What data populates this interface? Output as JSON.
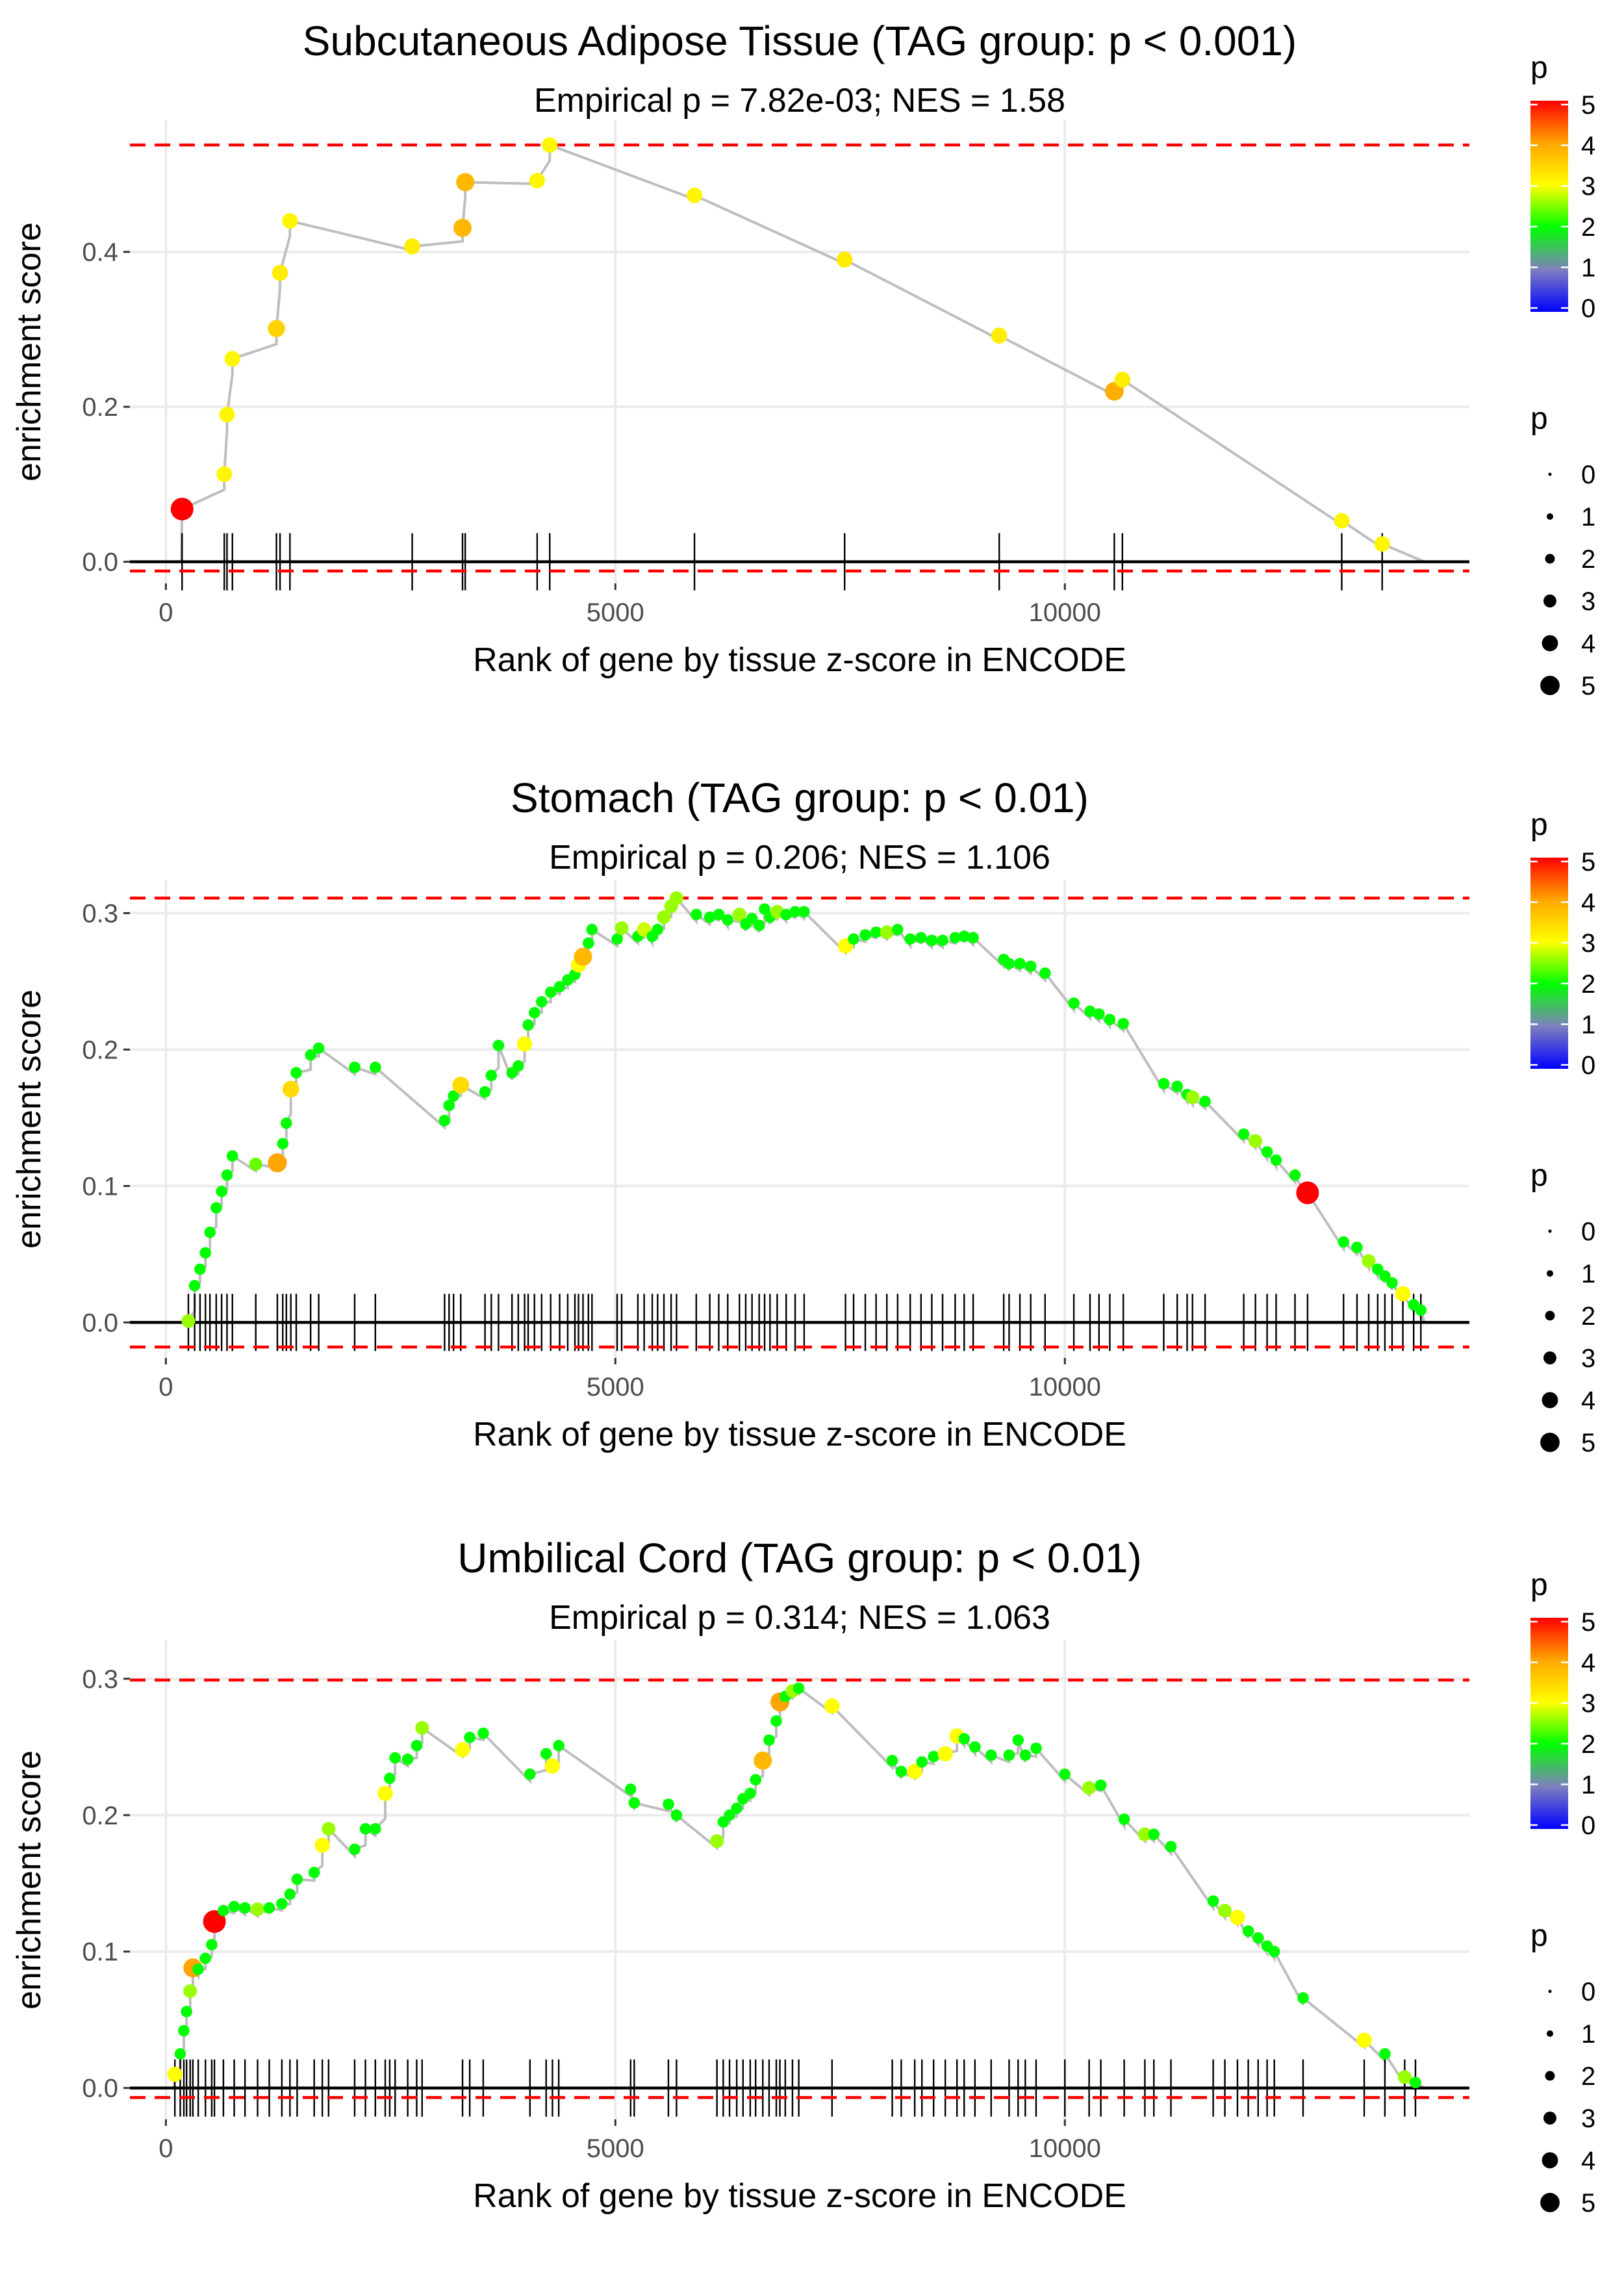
{
  "colorbar": {
    "stops": [
      "#0000ff",
      "#7f7fbf",
      "#00ff00",
      "#ffff00",
      "#ffa500",
      "#ff0000"
    ],
    "ticks": [
      0,
      1,
      2,
      3,
      4,
      5
    ]
  },
  "colors": {
    "threshold": "#ff0000",
    "line": "#bebebe",
    "grid": "#ebebeb",
    "rug": "#000000"
  },
  "chart_data": [
    {
      "type": "scatter",
      "title": "Subcutaneous Adipose Tissue (TAG group: p < 0.001)",
      "subtitle": "Empirical p = 7.82e-03; NES = 1.58",
      "xlabel": "Rank of gene by tissue z-score in ENCODE",
      "ylabel": "enrichment score",
      "xlim": [
        -400,
        14500
      ],
      "ylim": [
        -0.028,
        0.57
      ],
      "xticks": [
        0,
        5000,
        10000
      ],
      "xticklabels": [
        "0",
        "5000",
        "10000"
      ],
      "yticks": [
        0.0,
        0.2,
        0.4
      ],
      "yticklabels": [
        "0.0",
        "0.2",
        "0.4"
      ],
      "hlines": [
        0.538,
        -0.012
      ],
      "legend_color_title": "p",
      "legend_size_title": "p",
      "legend_size_labels": [
        "0",
        "1",
        "2",
        "3",
        "4",
        "5"
      ],
      "hits": [
        [
          180,
          0.068,
          5
        ],
        [
          650,
          0.113,
          3.1
        ],
        [
          680,
          0.19,
          3.1
        ],
        [
          740,
          0.262,
          3.1
        ],
        [
          1230,
          0.301,
          3.5
        ],
        [
          1270,
          0.373,
          3.2
        ],
        [
          1380,
          0.44,
          3.1
        ],
        [
          2740,
          0.407,
          3.2
        ],
        [
          3300,
          0.431,
          3.8
        ],
        [
          3330,
          0.49,
          3.8
        ],
        [
          4130,
          0.492,
          3.1
        ],
        [
          4270,
          0.538,
          3.1
        ],
        [
          5880,
          0.473,
          3.1
        ],
        [
          7550,
          0.39,
          3.2
        ],
        [
          9270,
          0.292,
          3.2
        ],
        [
          10550,
          0.22,
          3.9
        ],
        [
          10640,
          0.235,
          3.2
        ],
        [
          13080,
          0.053,
          3.1
        ],
        [
          13530,
          0.023,
          3.1
        ]
      ],
      "end_rank": 14000
    },
    {
      "type": "scatter",
      "title": "Stomach (TAG group: p < 0.01)",
      "subtitle": "Empirical p = 0.206; NES = 1.106",
      "xlabel": "Rank of gene by tissue z-score in ENCODE",
      "ylabel": "enrichment score",
      "xlim": [
        -400,
        14500
      ],
      "ylim": [
        -0.026,
        0.324
      ],
      "xticks": [
        0,
        5000,
        10000
      ],
      "xticklabels": [
        "0",
        "5000",
        "10000"
      ],
      "yticks": [
        0.0,
        0.1,
        0.2,
        0.3
      ],
      "yticklabels": [
        "0.0",
        "0.1",
        "0.2",
        "0.3"
      ],
      "hlines": [
        0.311,
        -0.018
      ],
      "legend_color_title": "p",
      "legend_size_title": "p",
      "legend_size_labels": [
        "0",
        "1",
        "2",
        "3",
        "4",
        "5"
      ],
      "hits": [
        [
          250,
          0.001,
          2.6
        ],
        [
          320,
          0.027,
          2.0
        ],
        [
          380,
          0.039,
          2.0
        ],
        [
          440,
          0.051,
          2.0
        ],
        [
          490,
          0.066,
          2.0
        ],
        [
          560,
          0.084,
          2.0
        ],
        [
          620,
          0.096,
          2.0
        ],
        [
          680,
          0.108,
          2.0
        ],
        [
          740,
          0.122,
          2.0
        ],
        [
          1000,
          0.116,
          2.4
        ],
        [
          1240,
          0.117,
          4.0
        ],
        [
          1300,
          0.131,
          2.0
        ],
        [
          1340,
          0.146,
          2.0
        ],
        [
          1390,
          0.171,
          3.4
        ],
        [
          1450,
          0.183,
          2.0
        ],
        [
          1610,
          0.196,
          2.0
        ],
        [
          1700,
          0.201,
          2.0
        ],
        [
          2100,
          0.187,
          2.0
        ],
        [
          2330,
          0.187,
          2.0
        ],
        [
          3100,
          0.148,
          2.0
        ],
        [
          3150,
          0.159,
          2.0
        ],
        [
          3200,
          0.166,
          2.0
        ],
        [
          3280,
          0.174,
          3.4
        ],
        [
          3550,
          0.169,
          2.0
        ],
        [
          3620,
          0.181,
          2.0
        ],
        [
          3700,
          0.203,
          2.0
        ],
        [
          3850,
          0.183,
          2.0
        ],
        [
          3920,
          0.188,
          2.0
        ],
        [
          3990,
          0.204,
          3.0
        ],
        [
          4030,
          0.218,
          2.0
        ],
        [
          4100,
          0.227,
          2.0
        ],
        [
          4180,
          0.235,
          2.0
        ],
        [
          4280,
          0.242,
          2.0
        ],
        [
          4380,
          0.246,
          2.0
        ],
        [
          4470,
          0.251,
          2.0
        ],
        [
          4550,
          0.255,
          2.0
        ],
        [
          4590,
          0.262,
          3.0
        ],
        [
          4640,
          0.268,
          3.8
        ],
        [
          4700,
          0.278,
          2.0
        ],
        [
          4740,
          0.288,
          2.0
        ],
        [
          5020,
          0.281,
          2.0
        ],
        [
          5070,
          0.289,
          2.6
        ],
        [
          5250,
          0.283,
          2.0
        ],
        [
          5320,
          0.288,
          2.8
        ],
        [
          5410,
          0.283,
          2.0
        ],
        [
          5470,
          0.288,
          2.0
        ],
        [
          5540,
          0.297,
          2.6
        ],
        [
          5620,
          0.305,
          2.6
        ],
        [
          5680,
          0.311,
          2.6
        ],
        [
          5900,
          0.299,
          2.0
        ],
        [
          6050,
          0.297,
          2.0
        ],
        [
          6150,
          0.299,
          2.0
        ],
        [
          6250,
          0.295,
          2.0
        ],
        [
          6380,
          0.299,
          2.6
        ],
        [
          6450,
          0.292,
          2.0
        ],
        [
          6520,
          0.296,
          2.0
        ],
        [
          6600,
          0.291,
          2.0
        ],
        [
          6660,
          0.303,
          2.0
        ],
        [
          6720,
          0.297,
          2.0
        ],
        [
          6800,
          0.301,
          2.6
        ],
        [
          6900,
          0.299,
          2.0
        ],
        [
          7000,
          0.301,
          2.0
        ],
        [
          7100,
          0.301,
          2.0
        ],
        [
          7560,
          0.276,
          3.0
        ],
        [
          7650,
          0.281,
          2.0
        ],
        [
          7780,
          0.284,
          2.0
        ],
        [
          7900,
          0.286,
          2.0
        ],
        [
          8020,
          0.286,
          2.6
        ],
        [
          8140,
          0.288,
          2.0
        ],
        [
          8280,
          0.281,
          2.0
        ],
        [
          8400,
          0.282,
          2.0
        ],
        [
          8520,
          0.28,
          2.0
        ],
        [
          8640,
          0.28,
          2.0
        ],
        [
          8780,
          0.282,
          2.0
        ],
        [
          8880,
          0.283,
          2.0
        ],
        [
          8980,
          0.282,
          2.0
        ],
        [
          9320,
          0.266,
          2.0
        ],
        [
          9380,
          0.263,
          2.0
        ],
        [
          9500,
          0.263,
          2.0
        ],
        [
          9620,
          0.261,
          2.0
        ],
        [
          9780,
          0.256,
          2.0
        ],
        [
          10100,
          0.234,
          2.0
        ],
        [
          10280,
          0.228,
          2.0
        ],
        [
          10380,
          0.226,
          2.0
        ],
        [
          10500,
          0.222,
          2.0
        ],
        [
          10650,
          0.219,
          2.0
        ],
        [
          11100,
          0.175,
          2.0
        ],
        [
          11250,
          0.173,
          2.0
        ],
        [
          11360,
          0.167,
          2.0
        ],
        [
          11420,
          0.165,
          2.6
        ],
        [
          11560,
          0.162,
          2.0
        ],
        [
          11990,
          0.138,
          2.0
        ],
        [
          12120,
          0.133,
          2.6
        ],
        [
          12250,
          0.125,
          2.0
        ],
        [
          12350,
          0.119,
          2.0
        ],
        [
          12560,
          0.108,
          2.0
        ],
        [
          12700,
          0.095,
          5.0
        ],
        [
          13100,
          0.059,
          2.0
        ],
        [
          13250,
          0.055,
          2.0
        ],
        [
          13380,
          0.045,
          2.6
        ],
        [
          13480,
          0.039,
          2.0
        ],
        [
          13560,
          0.034,
          2.0
        ],
        [
          13640,
          0.029,
          2.0
        ],
        [
          13760,
          0.021,
          3.0
        ],
        [
          13880,
          0.013,
          2.0
        ],
        [
          13960,
          0.009,
          2.0
        ]
      ],
      "end_rank": 14000
    },
    {
      "type": "scatter",
      "title": "Umbilical Cord (TAG group: p < 0.01)",
      "subtitle": "Empirical p = 0.314; NES = 1.063",
      "xlabel": "Rank of gene by tissue z-score in ENCODE",
      "ylabel": "enrichment score",
      "xlim": [
        -400,
        14500
      ],
      "ylim": [
        -0.023,
        0.328
      ],
      "xticks": [
        0,
        5000,
        10000
      ],
      "xticklabels": [
        "0",
        "5000",
        "10000"
      ],
      "yticks": [
        0.0,
        0.1,
        0.2,
        0.3
      ],
      "yticklabels": [
        "0.0",
        "0.1",
        "0.2",
        "0.3"
      ],
      "hlines": [
        0.299,
        -0.007
      ],
      "legend_color_title": "p",
      "legend_size_title": "p",
      "legend_size_labels": [
        "0",
        "1",
        "2",
        "3",
        "4",
        "5"
      ],
      "hits": [
        [
          100,
          0.01,
          3.0
        ],
        [
          160,
          0.025,
          2.0
        ],
        [
          200,
          0.042,
          2.0
        ],
        [
          230,
          0.056,
          2.0
        ],
        [
          270,
          0.071,
          2.6
        ],
        [
          300,
          0.088,
          4.0
        ],
        [
          360,
          0.087,
          2.0
        ],
        [
          440,
          0.095,
          2.0
        ],
        [
          510,
          0.105,
          2.0
        ],
        [
          540,
          0.122,
          5.0
        ],
        [
          640,
          0.13,
          2.0
        ],
        [
          760,
          0.133,
          2.0
        ],
        [
          880,
          0.132,
          2.0
        ],
        [
          1020,
          0.131,
          2.6
        ],
        [
          1150,
          0.132,
          2.0
        ],
        [
          1290,
          0.135,
          2.0
        ],
        [
          1380,
          0.142,
          2.0
        ],
        [
          1460,
          0.153,
          2.0
        ],
        [
          1650,
          0.158,
          2.0
        ],
        [
          1740,
          0.178,
          3.0
        ],
        [
          1810,
          0.19,
          2.6
        ],
        [
          2100,
          0.175,
          2.0
        ],
        [
          2220,
          0.19,
          2.0
        ],
        [
          2330,
          0.19,
          2.0
        ],
        [
          2440,
          0.216,
          3.0
        ],
        [
          2490,
          0.227,
          2.0
        ],
        [
          2550,
          0.242,
          2.0
        ],
        [
          2690,
          0.241,
          2.0
        ],
        [
          2790,
          0.251,
          2.0
        ],
        [
          2850,
          0.264,
          2.6
        ],
        [
          3300,
          0.248,
          3.0
        ],
        [
          3380,
          0.257,
          2.0
        ],
        [
          3530,
          0.26,
          2.0
        ],
        [
          4050,
          0.23,
          2.0
        ],
        [
          4230,
          0.245,
          2.0
        ],
        [
          4300,
          0.236,
          3.0
        ],
        [
          4370,
          0.251,
          2.0
        ],
        [
          5170,
          0.219,
          2.0
        ],
        [
          5210,
          0.209,
          2.0
        ],
        [
          5590,
          0.208,
          2.0
        ],
        [
          5680,
          0.2,
          2.0
        ],
        [
          6130,
          0.181,
          2.6
        ],
        [
          6200,
          0.195,
          2.0
        ],
        [
          6270,
          0.2,
          2.0
        ],
        [
          6350,
          0.205,
          2.0
        ],
        [
          6420,
          0.212,
          2.0
        ],
        [
          6500,
          0.216,
          2.0
        ],
        [
          6560,
          0.226,
          2.0
        ],
        [
          6640,
          0.24,
          3.8
        ],
        [
          6710,
          0.255,
          2.0
        ],
        [
          6790,
          0.269,
          2.0
        ],
        [
          6830,
          0.283,
          4.0
        ],
        [
          6890,
          0.287,
          2.0
        ],
        [
          6970,
          0.291,
          2.6
        ],
        [
          7040,
          0.293,
          2.0
        ],
        [
          7410,
          0.28,
          3.0
        ],
        [
          8080,
          0.24,
          2.0
        ],
        [
          8180,
          0.232,
          2.0
        ],
        [
          8330,
          0.232,
          3.0
        ],
        [
          8410,
          0.239,
          2.0
        ],
        [
          8540,
          0.243,
          2.0
        ],
        [
          8670,
          0.245,
          3.0
        ],
        [
          8800,
          0.258,
          3.0
        ],
        [
          8880,
          0.256,
          2.0
        ],
        [
          9000,
          0.25,
          2.0
        ],
        [
          9180,
          0.244,
          2.0
        ],
        [
          9380,
          0.244,
          2.0
        ],
        [
          9480,
          0.255,
          2.0
        ],
        [
          9560,
          0.244,
          2.0
        ],
        [
          9680,
          0.249,
          2.0
        ],
        [
          10000,
          0.23,
          2.0
        ],
        [
          10270,
          0.22,
          2.6
        ],
        [
          10400,
          0.222,
          2.0
        ],
        [
          10660,
          0.197,
          2.0
        ],
        [
          10890,
          0.186,
          2.6
        ],
        [
          10990,
          0.186,
          2.0
        ],
        [
          11180,
          0.177,
          2.0
        ],
        [
          11650,
          0.137,
          2.0
        ],
        [
          11780,
          0.13,
          2.6
        ],
        [
          11920,
          0.125,
          3.0
        ],
        [
          12040,
          0.115,
          2.0
        ],
        [
          12150,
          0.11,
          2.0
        ],
        [
          12250,
          0.104,
          2.0
        ],
        [
          12330,
          0.1,
          2.0
        ],
        [
          12650,
          0.066,
          2.0
        ],
        [
          13330,
          0.035,
          3.0
        ],
        [
          13560,
          0.025,
          2.0
        ],
        [
          13780,
          0.008,
          2.6
        ],
        [
          13900,
          0.004,
          2.0
        ]
      ],
      "end_rank": 14000
    }
  ]
}
